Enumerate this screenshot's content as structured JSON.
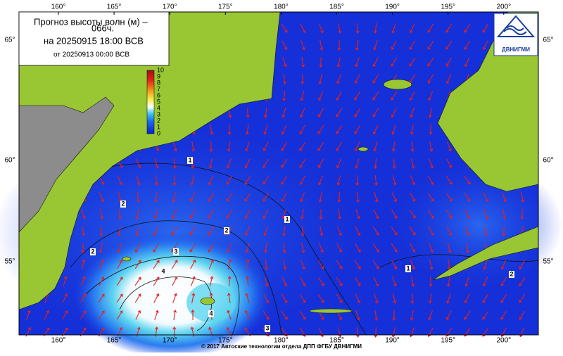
{
  "header": {
    "title": "Прогноз высоты волн (м) –",
    "lead": "066ч.",
    "valid": "на 20250915 18:00 ВСВ",
    "issued": "от 20250913 00:00 ВСВ"
  },
  "logo": "ДВНИГМИ",
  "longitude_labels": [
    "160°",
    "165°",
    "170°",
    "175°",
    "180°",
    "185°",
    "190°",
    "195°",
    "200°"
  ],
  "latitude_labels": [
    "65°",
    "60°",
    "55°"
  ],
  "colorbar_labels": [
    "10",
    "9",
    "8",
    "7",
    "6",
    "5",
    "4",
    "3",
    "2",
    "1",
    "0"
  ],
  "contour_labels": [
    "1",
    "2",
    "2",
    "3",
    "4",
    "1",
    "2",
    "1",
    "2",
    "4",
    "3"
  ],
  "footer": "© 2017 Автоские технологии отдела ДПП ФГБУ ДВНИГМИ"
}
